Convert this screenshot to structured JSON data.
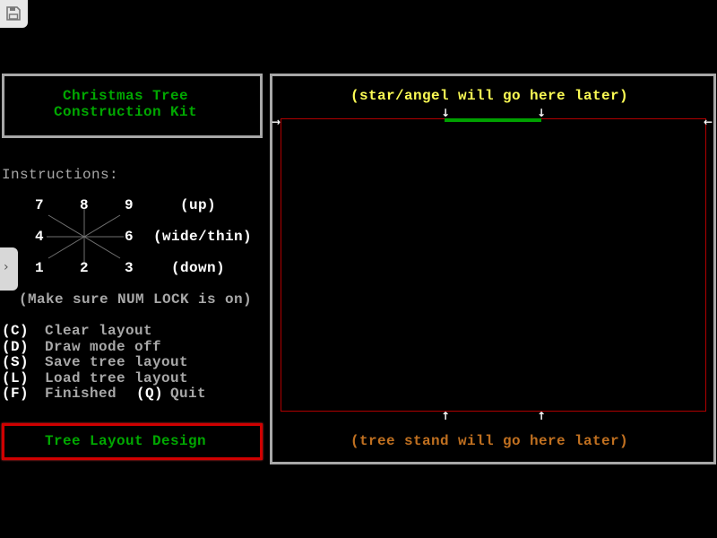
{
  "toolbar": {
    "save_icon": "floppy-disk-icon",
    "side_tab_icon": "chevron-right-icon"
  },
  "title": {
    "line1": "Christmas Tree",
    "line2": "Construction Kit"
  },
  "instructions": {
    "heading": "Instructions:",
    "keypad": [
      "7",
      "8",
      "9",
      "4",
      "6",
      "1",
      "2",
      "3"
    ],
    "up": "(up)",
    "wide_thin": "(wide/thin)",
    "down": "(down)",
    "numlock_note": "(Make sure NUM LOCK is on)"
  },
  "menu": [
    {
      "key": "(C)",
      "label": "Clear layout"
    },
    {
      "key": "(D)",
      "label": "Draw mode off"
    },
    {
      "key": "(S)",
      "label": "Save tree layout"
    },
    {
      "key": "(L)",
      "label": "Load tree layout"
    },
    {
      "key": "(F)",
      "label": "Finished",
      "key2": "(Q)",
      "label2": "Quit"
    }
  ],
  "mode_label": "Tree Layout Design",
  "canvas": {
    "top_note": "(star/angel will go here later)",
    "bottom_note": "(tree stand will go here later)"
  },
  "colors": {
    "title_green": "#00a800",
    "border_red": "#a80000",
    "top_note": "#fcfc54",
    "bottom_note": "#c07020",
    "panel_border": "#a8a8a8"
  }
}
